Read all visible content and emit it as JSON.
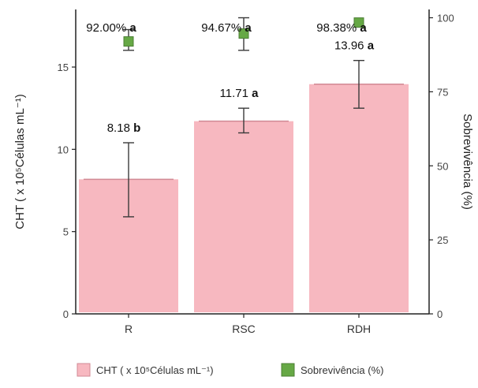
{
  "chart_data": {
    "type": "bar",
    "categories": [
      "R",
      "RSC",
      "RDH"
    ],
    "series": [
      {
        "name": "CHT ( x 10⁵Células mL⁻¹)",
        "axis": "left",
        "values": [
          8.18,
          11.71,
          13.96
        ],
        "error_low": [
          5.9,
          11.0,
          12.5
        ],
        "error_high": [
          10.4,
          12.5,
          15.4
        ],
        "labels": [
          "8.18",
          "11.71",
          "13.96"
        ],
        "letters": [
          "b",
          "a",
          "a"
        ],
        "color": "#f7b8c0"
      },
      {
        "name": "Sobrevivência (%)",
        "axis": "right",
        "type": "point",
        "values": [
          92.0,
          94.67,
          98.38
        ],
        "error_low": [
          89.0,
          89.0,
          98.38
        ],
        "error_high": [
          96.0,
          100.0,
          98.38
        ],
        "labels": [
          "92.00%",
          "94.67%",
          "98.38%"
        ],
        "letters": [
          "a",
          "a",
          "a"
        ],
        "color": "#66a845"
      }
    ],
    "ylabel": "CHT ( x 10⁵Células mL⁻¹)",
    "ylabel_right": "Sobrevivência (%)",
    "ylim": [
      0,
      18.5
    ],
    "ylim_right": [
      0,
      102.8
    ],
    "yticks": [
      0,
      5,
      10,
      15
    ],
    "yticks_right": [
      0,
      25,
      50,
      75,
      100
    ],
    "grid": false,
    "legend_position": "bottom"
  }
}
